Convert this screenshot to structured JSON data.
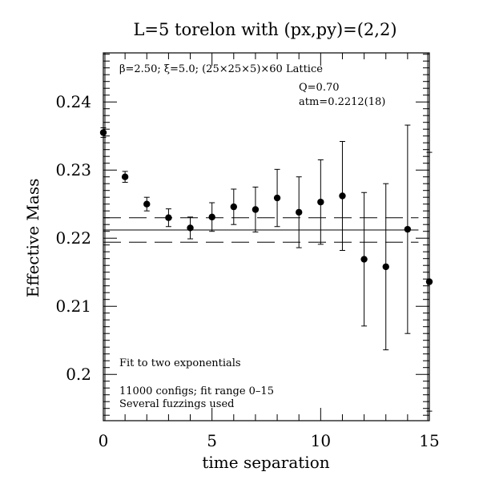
{
  "chart_data": {
    "type": "scatter",
    "title": "L=5 torelon with (px,py)=(2,2)",
    "xlabel": "time separation",
    "ylabel": "Effective Mass",
    "xlim": [
      0,
      15
    ],
    "ylim": [
      0.1932,
      0.2472
    ],
    "grid": false,
    "x_ticks": [
      0,
      5,
      10,
      15
    ],
    "x_tick_labels": [
      "0",
      "5",
      "10",
      "15"
    ],
    "y_ticks": [
      0.2,
      0.21,
      0.22,
      0.23,
      0.24
    ],
    "y_tick_labels": [
      "0.2",
      "0.21",
      "0.22",
      "0.23",
      "0.24"
    ],
    "annotations": {
      "lattice_line": "β=2.50; ξ=5.0; (25×25×5)×60 Lattice",
      "q_value": "Q=0.70",
      "mass_value": "atm=0.2212(18)",
      "fit_note": "Fit to two exponentials",
      "configs_note": "11000 configs; fit range 0–15",
      "fuzzing_note": "Several fuzzings used"
    },
    "fit": {
      "value": 0.2212,
      "upper": 0.223,
      "lower": 0.2194,
      "x_start": 0,
      "x_end": 14.5
    },
    "points": [
      {
        "x": 0,
        "y": 0.2355,
        "err": 0.0007
      },
      {
        "x": 1,
        "y": 0.229,
        "err": 0.0008
      },
      {
        "x": 2,
        "y": 0.225,
        "err": 0.001
      },
      {
        "x": 3,
        "y": 0.223,
        "err": 0.0013
      },
      {
        "x": 4,
        "y": 0.2215,
        "err": 0.0016
      },
      {
        "x": 5,
        "y": 0.2231,
        "err": 0.0021
      },
      {
        "x": 6,
        "y": 0.2246,
        "err": 0.0026
      },
      {
        "x": 7,
        "y": 0.2242,
        "err": 0.0033
      },
      {
        "x": 8,
        "y": 0.2259,
        "err": 0.0042
      },
      {
        "x": 9,
        "y": 0.2238,
        "err": 0.0052
      },
      {
        "x": 10,
        "y": 0.2253,
        "err": 0.0062
      },
      {
        "x": 11,
        "y": 0.2262,
        "err": 0.008
      },
      {
        "x": 12,
        "y": 0.2169,
        "err": 0.0098
      },
      {
        "x": 13,
        "y": 0.2158,
        "err": 0.0122
      },
      {
        "x": 14,
        "y": 0.2213,
        "err": 0.0153
      },
      {
        "x": 15,
        "y": 0.2136,
        "err": 0.019
      }
    ]
  }
}
